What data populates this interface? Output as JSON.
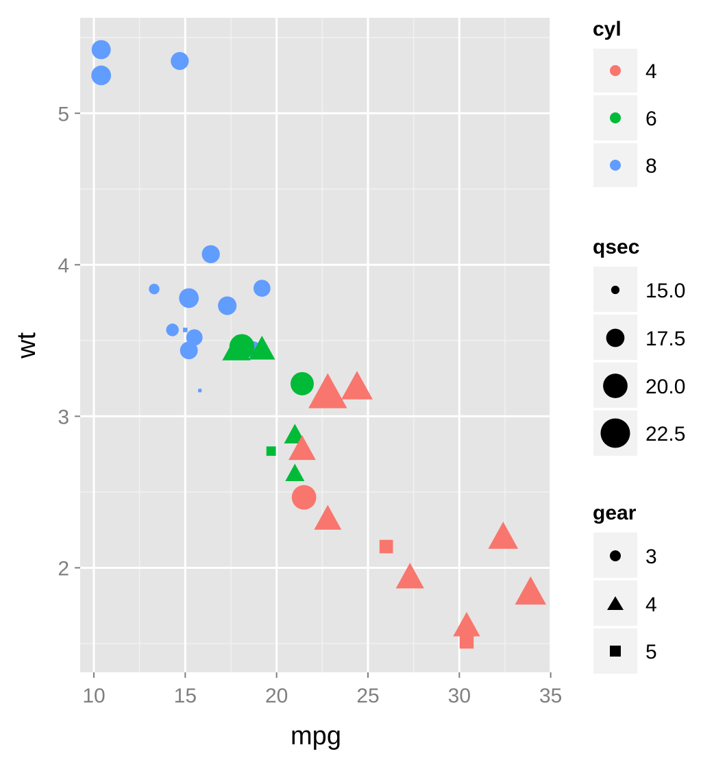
{
  "chart_data": {
    "type": "scatter",
    "title": "",
    "xlabel": "mpg",
    "ylabel": "wt",
    "xlim": [
      9.25,
      35.05
    ],
    "ylim": [
      1.31,
      5.63
    ],
    "x_ticks": [
      10,
      15,
      20,
      25,
      30,
      35
    ],
    "y_ticks": [
      2,
      3,
      4,
      5
    ],
    "grid": true,
    "background": "#e5e5e5",
    "legend_position": "right",
    "encodings": {
      "color": "cyl",
      "size": "qsec",
      "shape": "gear"
    },
    "legends": {
      "cyl": {
        "title": "cyl",
        "entries": [
          {
            "label": "4",
            "color": "#F8766D"
          },
          {
            "label": "6",
            "color": "#00BA38"
          },
          {
            "label": "8",
            "color": "#619CFF"
          }
        ]
      },
      "qsec": {
        "title": "qsec",
        "entries": [
          {
            "label": "15.0",
            "value": 15.0
          },
          {
            "label": "17.5",
            "value": 17.5
          },
          {
            "label": "20.0",
            "value": 20.0
          },
          {
            "label": "22.5",
            "value": 22.5
          }
        ]
      },
      "gear": {
        "title": "gear",
        "entries": [
          {
            "label": "3",
            "shape": "circle"
          },
          {
            "label": "4",
            "shape": "triangle"
          },
          {
            "label": "5",
            "shape": "square"
          }
        ]
      }
    },
    "points": [
      {
        "mpg": 10.4,
        "wt": 5.42,
        "cyl": 8,
        "qsec": 17.8,
        "gear": 3
      },
      {
        "mpg": 10.4,
        "wt": 5.25,
        "cyl": 8,
        "qsec": 18.0,
        "gear": 3
      },
      {
        "mpg": 14.7,
        "wt": 5.345,
        "cyl": 8,
        "qsec": 17.4,
        "gear": 3
      },
      {
        "mpg": 16.4,
        "wt": 4.07,
        "cyl": 8,
        "qsec": 17.4,
        "gear": 3
      },
      {
        "mpg": 13.3,
        "wt": 3.84,
        "cyl": 8,
        "qsec": 15.4,
        "gear": 3
      },
      {
        "mpg": 19.2,
        "wt": 3.845,
        "cyl": 8,
        "qsec": 17.05,
        "gear": 3
      },
      {
        "mpg": 15.2,
        "wt": 3.78,
        "cyl": 8,
        "qsec": 18.0,
        "gear": 3
      },
      {
        "mpg": 17.3,
        "wt": 3.73,
        "cyl": 8,
        "qsec": 17.6,
        "gear": 3
      },
      {
        "mpg": 14.3,
        "wt": 3.57,
        "cyl": 8,
        "qsec": 15.84,
        "gear": 3
      },
      {
        "mpg": 15.0,
        "wt": 3.57,
        "cyl": 8,
        "qsec": 14.6,
        "gear": 5
      },
      {
        "mpg": 15.5,
        "wt": 3.52,
        "cyl": 8,
        "qsec": 16.87,
        "gear": 3
      },
      {
        "mpg": 15.2,
        "wt": 3.435,
        "cyl": 8,
        "qsec": 17.3,
        "gear": 3
      },
      {
        "mpg": 15.8,
        "wt": 3.17,
        "cyl": 8,
        "qsec": 14.5,
        "gear": 5
      },
      {
        "mpg": 18.7,
        "wt": 3.44,
        "cyl": 8,
        "qsec": 17.02,
        "gear": 3
      },
      {
        "mpg": 17.8,
        "wt": 3.44,
        "cyl": 6,
        "qsec": 18.9,
        "gear": 4
      },
      {
        "mpg": 19.2,
        "wt": 3.44,
        "cyl": 6,
        "qsec": 18.3,
        "gear": 4
      },
      {
        "mpg": 18.1,
        "wt": 3.46,
        "cyl": 6,
        "qsec": 20.22,
        "gear": 3
      },
      {
        "mpg": 21.4,
        "wt": 3.215,
        "cyl": 6,
        "qsec": 19.44,
        "gear": 3
      },
      {
        "mpg": 21.0,
        "wt": 2.875,
        "cyl": 6,
        "qsec": 17.02,
        "gear": 4
      },
      {
        "mpg": 21.0,
        "wt": 2.62,
        "cyl": 6,
        "qsec": 16.46,
        "gear": 4
      },
      {
        "mpg": 19.7,
        "wt": 2.77,
        "cyl": 6,
        "qsec": 15.5,
        "gear": 5
      },
      {
        "mpg": 22.8,
        "wt": 3.15,
        "cyl": 4,
        "qsec": 22.9,
        "gear": 4
      },
      {
        "mpg": 24.4,
        "wt": 3.19,
        "cyl": 4,
        "qsec": 20.0,
        "gear": 4
      },
      {
        "mpg": 21.4,
        "wt": 2.78,
        "cyl": 4,
        "qsec": 18.6,
        "gear": 4
      },
      {
        "mpg": 21.5,
        "wt": 2.465,
        "cyl": 4,
        "qsec": 20.01,
        "gear": 3
      },
      {
        "mpg": 22.8,
        "wt": 2.32,
        "cyl": 4,
        "qsec": 18.61,
        "gear": 4
      },
      {
        "mpg": 26.0,
        "wt": 2.14,
        "cyl": 4,
        "qsec": 16.7,
        "gear": 5
      },
      {
        "mpg": 27.3,
        "wt": 1.935,
        "cyl": 4,
        "qsec": 18.9,
        "gear": 4
      },
      {
        "mpg": 32.4,
        "wt": 2.2,
        "cyl": 4,
        "qsec": 19.47,
        "gear": 4
      },
      {
        "mpg": 33.9,
        "wt": 1.835,
        "cyl": 4,
        "qsec": 19.9,
        "gear": 4
      },
      {
        "mpg": 30.4,
        "wt": 1.615,
        "cyl": 4,
        "qsec": 18.52,
        "gear": 4
      },
      {
        "mpg": 30.4,
        "wt": 1.513,
        "cyl": 4,
        "qsec": 16.9,
        "gear": 5
      }
    ]
  }
}
